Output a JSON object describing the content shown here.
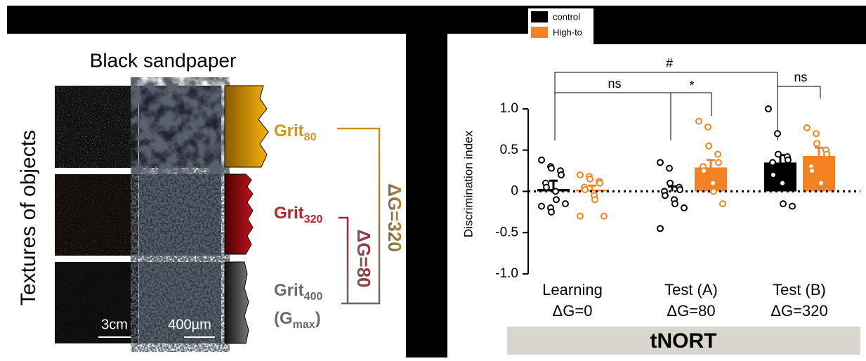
{
  "figure": {
    "title": "Black sandpaper",
    "side_label": "Textures of objects",
    "grits": [
      {
        "label": "Grit",
        "sub": "80"
      },
      {
        "label": "Grit",
        "sub": "320"
      },
      {
        "label": "Grit",
        "sub": "400"
      }
    ],
    "gmax": {
      "open": "(G",
      "sub": "max",
      "close": ")"
    },
    "delta_large": "ΔG=320",
    "delta_small": "ΔG=80",
    "scale_bars": [
      "3cm",
      "400µm"
    ]
  },
  "chart_data": {
    "type": "bar",
    "y_label": "Discrimination index",
    "categories": [
      "Learning",
      "Test (A)",
      "Test (B)"
    ],
    "category_sublabels": [
      "ΔG=0",
      "ΔG=80",
      "ΔG=320"
    ],
    "group_label": "tNORT",
    "ylim": [
      -1,
      1
    ],
    "yticks": [
      {
        "value": 1,
        "label": "1.0"
      },
      0.5,
      0,
      -0.5,
      {
        "value": -1,
        "label": "-1.0"
      }
    ],
    "series": [
      {
        "name": "control",
        "color": "#000000",
        "values": [
          0.03,
          0.0,
          0.35
        ],
        "errors": [
          0.1,
          0.06,
          0.09
        ],
        "points": [
          [
            0.38,
            0.3,
            0.28,
            0.25,
            0.2,
            0.1,
            0.05,
            0.0,
            -0.1,
            -0.15,
            -0.18,
            -0.2,
            -0.25
          ],
          [
            0.35,
            0.28,
            0.1,
            0.05,
            0.02,
            0.0,
            -0.05,
            -0.1,
            -0.15,
            -0.2,
            -0.45
          ],
          [
            1.0,
            0.7,
            0.45,
            0.42,
            0.38,
            0.35,
            0.2,
            0.1,
            -0.15,
            -0.18
          ]
        ]
      },
      {
        "name": "High-to",
        "color": "#f58220",
        "values": [
          0.02,
          0.29,
          0.43
        ],
        "errors": [
          0.05,
          0.09,
          0.1
        ],
        "points": [
          [
            0.2,
            0.18,
            0.15,
            0.12,
            0.1,
            0.05,
            0.02,
            -0.05,
            -0.1,
            -0.3,
            -0.3
          ],
          [
            0.85,
            0.78,
            0.55,
            0.45,
            0.35,
            0.3,
            0.25,
            0.1,
            0.0,
            -0.15
          ],
          [
            0.77,
            0.7,
            0.58,
            0.5,
            0.45,
            0.3,
            0.25,
            0.1
          ]
        ]
      }
    ],
    "annotations": [
      "#",
      "ns",
      "*",
      "ns"
    ]
  }
}
